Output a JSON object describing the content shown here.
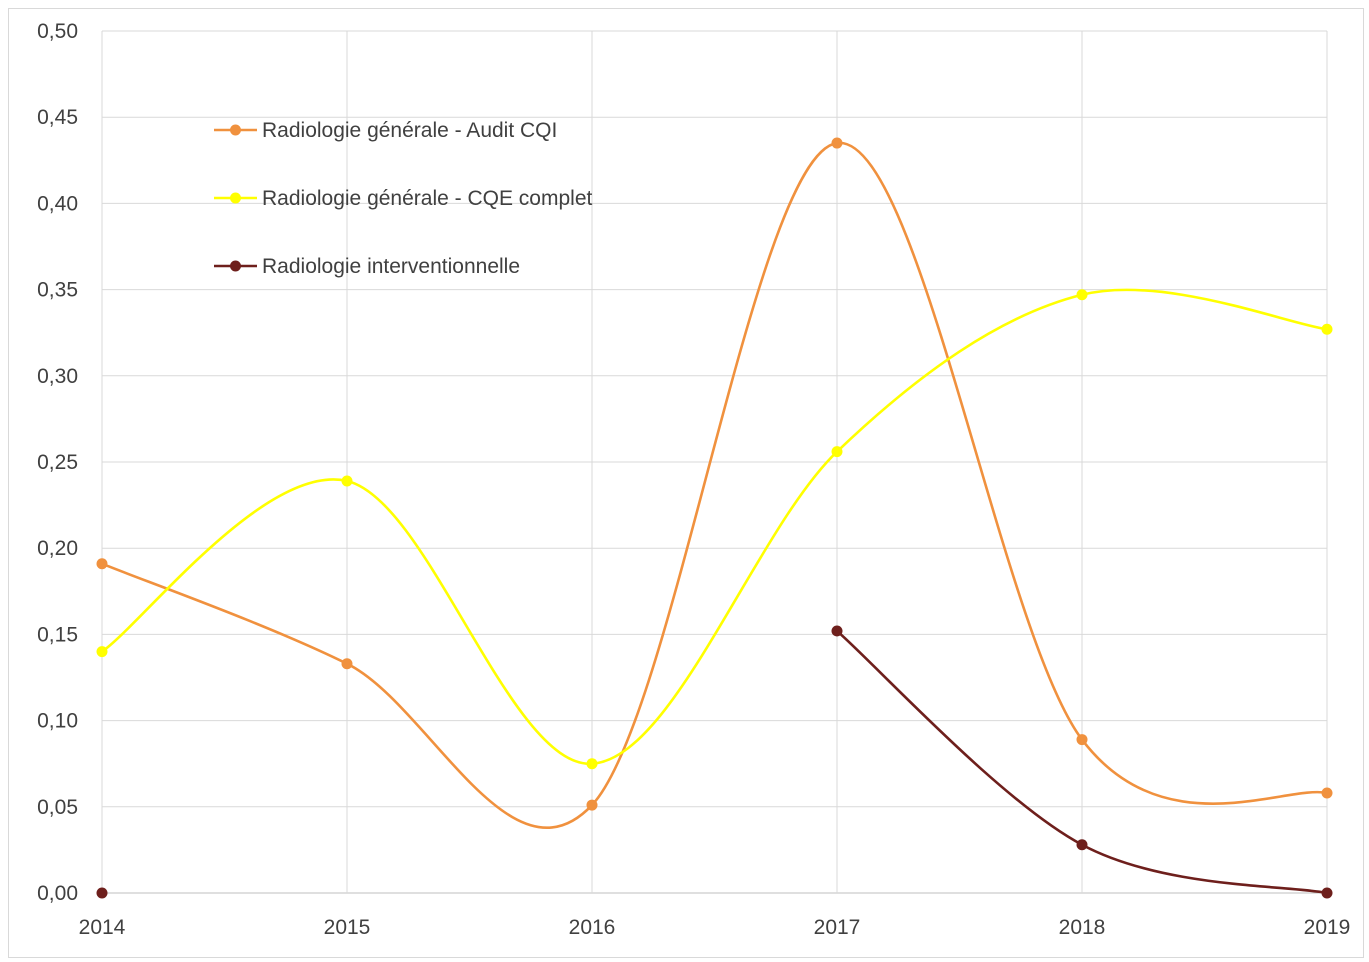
{
  "chart_data": {
    "type": "line",
    "smooth": true,
    "x": [
      "2014",
      "2015",
      "2016",
      "2017",
      "2018",
      "2019"
    ],
    "ylim": [
      0,
      0.5
    ],
    "ytick_step": 0.05,
    "ytick_labels": [
      "0,00",
      "0,05",
      "0,10",
      "0,15",
      "0,20",
      "0,25",
      "0,30",
      "0,35",
      "0,40",
      "0,45",
      "0,50"
    ],
    "grid": true,
    "legend_position": "top-left",
    "title": "",
    "xlabel": "",
    "ylabel": "",
    "series": [
      {
        "name": "Radiologie générale - Audit CQI",
        "color": "#f0913e",
        "values": [
          0.191,
          0.133,
          0.051,
          0.435,
          0.089,
          0.058
        ]
      },
      {
        "name": "Radiologie générale - CQE complet",
        "color": "#ffff00",
        "values": [
          0.14,
          0.239,
          0.075,
          0.256,
          0.347,
          0.327
        ]
      },
      {
        "name": "Radiologie interventionnelle",
        "color": "#6e1f1c",
        "values": [
          0.0,
          null,
          null,
          0.152,
          0.028,
          0.0
        ]
      }
    ]
  }
}
